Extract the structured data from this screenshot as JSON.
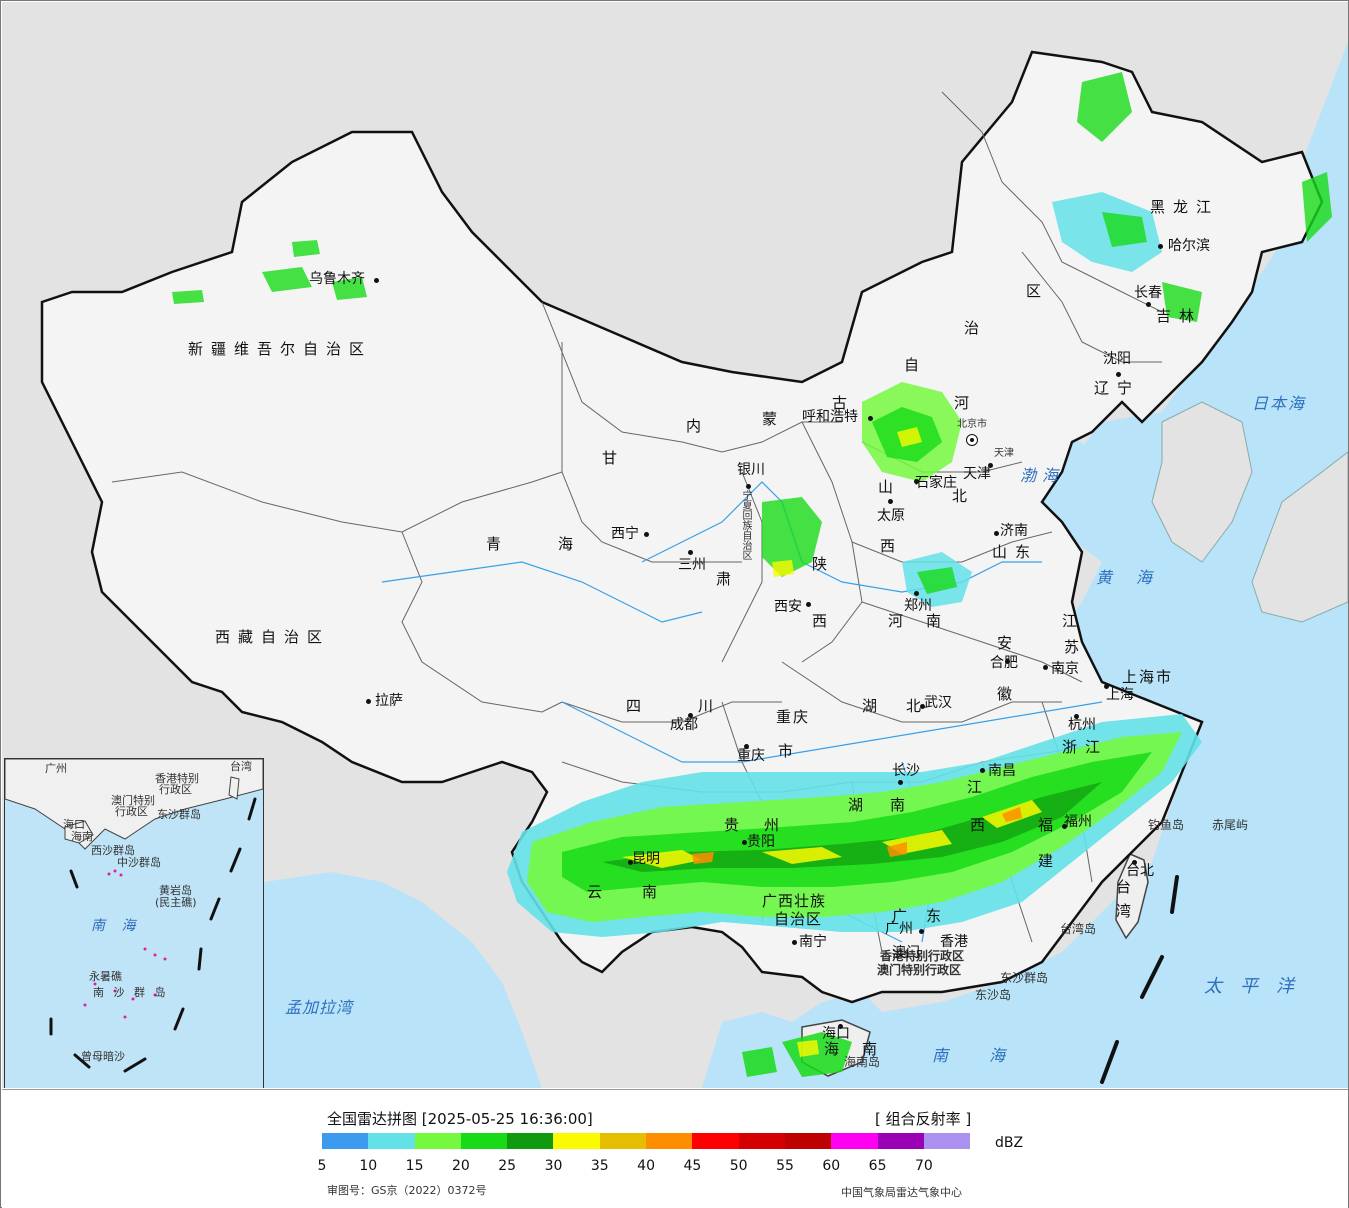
{
  "header": {
    "title": "全国雷达拼图 [2025-05-25 16:36:00]",
    "product": "[ 组合反射率 ]"
  },
  "legend": {
    "unit": "dBZ",
    "colors": [
      "#3d9bef",
      "#63e1e8",
      "#75f840",
      "#18db18",
      "#0f9a0f",
      "#fafa00",
      "#e6bd00",
      "#ff8d00",
      "#ff0000",
      "#d40000",
      "#bf0000",
      "#ff00f0",
      "#9a00b4",
      "#ad91f0"
    ],
    "ticks": [
      "5",
      "10",
      "15",
      "20",
      "25",
      "30",
      "35",
      "40",
      "45",
      "50",
      "55",
      "60",
      "65",
      "70"
    ]
  },
  "footer": {
    "approval": "审图号：GS京（2022）0372号",
    "source": "中国气象局雷达气象中心"
  },
  "map": {
    "provinces": {
      "xinjiang": "新疆维吾尔自治区",
      "xizang": "西藏自治区",
      "qinghai_1": "青",
      "qinghai_2": "海",
      "gansu_1": "甘",
      "gansu_2": "肃",
      "neimenggu_1": "内",
      "neimenggu_2": "蒙",
      "neimenggu_3": "古",
      "neimenggu_4": "自",
      "neimenggu_5": "治",
      "neimenggu_6": "区",
      "heilongjiang": "黑龙江",
      "jilin": "吉林",
      "liaoning": "辽宁",
      "hebei_1": "河",
      "hebei_2": "北",
      "shanxi_1": "山",
      "shanxi_2": "西",
      "shaanxi_1": "陕",
      "shaanxi_2": "西",
      "shandong": "山东",
      "henan_1": "河",
      "henan_2": "南",
      "jiangsu_1": "江",
      "jiangsu_2": "苏",
      "anhui_1": "安",
      "anhui_2": "徽",
      "shanghai": "上海市",
      "zhejiang": "浙江",
      "hubei_1": "湖",
      "hubei_2": "北",
      "sichuan_1": "四",
      "sichuan_2": "川",
      "chongqing_1": "重庆",
      "chongqing_2": "市",
      "guizhou_1": "贵",
      "guizhou_2": "州",
      "yunnan_1": "云",
      "yunnan_2": "南",
      "hunan_1": "湖",
      "hunan_2": "南",
      "jiangxi_1": "江",
      "jiangxi_2": "西",
      "fujian_1": "福",
      "fujian_2": "建",
      "guangxi_1": "广西壮族",
      "guangxi_2": "自治区",
      "guangdong_1": "广",
      "guangdong_2": "东",
      "hainan_1": "海",
      "hainan_2": "南",
      "taiwan_1": "台",
      "taiwan_2": "湾",
      "ningxia": "宁夏回族自治区",
      "tianjin": "天津",
      "hongkong": "香港特别行政区",
      "macau": "澳门特别行政区"
    },
    "cities": {
      "urumqi": "乌鲁木齐",
      "lhasa": "拉萨",
      "xining": "西宁",
      "lanzhou": "三州",
      "yinchuan": "银川",
      "hohhot": "呼和浩特",
      "beijing": "北京市",
      "tianjin": "天津",
      "shijiazhuang": "石家庄",
      "taiyuan": "太原",
      "jinan": "济南",
      "zhengzhou": "郑州",
      "xian": "西安",
      "chengdu": "成都",
      "chongqing": "重庆",
      "wuhan": "武汉",
      "hefei": "合肥",
      "nanjing": "南京",
      "shanghai": "上海",
      "hangzhou": "杭州",
      "nanchang": "南昌",
      "changsha": "长沙",
      "guiyang": "贵阳",
      "kunming": "昆明",
      "nanning": "南宁",
      "guangzhou": "广州",
      "fuzhou": "福州",
      "taipei": "台北",
      "haikou": "海口",
      "harbin": "哈尔滨",
      "changchun": "长春",
      "shenyang": "沈阳",
      "macau": "澳门",
      "hongkong": "香港"
    },
    "features": {
      "japan_sea": "日本海",
      "bohai": "渤海",
      "yellow_sea": "黄海",
      "pacific": "太平洋",
      "south_sea": "南 海",
      "bay_of_bengal": "孟加拉湾",
      "diaoyu": "钓鱼岛",
      "chiwei": "赤尾屿",
      "taiwan_island": "台湾岛",
      "dongsha_islands": "东沙群岛",
      "dongsha_island": "东沙岛",
      "hainan_island": "海南岛"
    },
    "inset": {
      "sea": "南 海",
      "xisha": "西沙群岛",
      "zhongsha": "中沙群岛",
      "huangyan": "黄岩岛",
      "huangyan_sub": "(民主礁)",
      "nansha": "南 沙 群 岛",
      "yongshu": "永暑礁",
      "zengmu": "曾母暗沙",
      "guangzhou": "广州",
      "hongkong": "香港特别",
      "hongkong2": "行政区",
      "macau": "澳门特别",
      "macau2": "行政区",
      "taiwan": "台湾",
      "dongsha": "东沙群岛",
      "hainan": "海南",
      "haikou": "海口"
    }
  }
}
